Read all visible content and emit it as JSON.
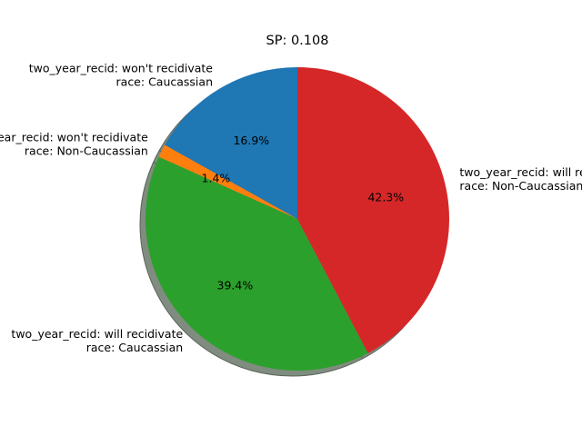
{
  "chart_data": {
    "type": "pie",
    "title": "SP: 0.108",
    "slices": [
      {
        "label_lines": [
          "two_year_recid: won't recidivate",
          "race: Caucassian"
        ],
        "value": 16.9,
        "pct_label": "16.9%",
        "color": "#1f77b4"
      },
      {
        "label_lines": [
          "two_year_recid: won't recidivate",
          "race: Non-Caucassian"
        ],
        "value": 1.4,
        "pct_label": "1.4%",
        "color": "#ff7f0e"
      },
      {
        "label_lines": [
          "two_year_recid: will recidivate",
          "race: Caucassian"
        ],
        "value": 39.4,
        "pct_label": "39.4%",
        "color": "#2ca02c"
      },
      {
        "label_lines": [
          "two_year_recid: will recidivate",
          "race: Non-Caucassian"
        ],
        "value": 42.3,
        "pct_label": "42.3%",
        "color": "#d62728"
      }
    ],
    "start_angle_deg": 90,
    "direction": "counterclockwise",
    "shadow": true
  }
}
